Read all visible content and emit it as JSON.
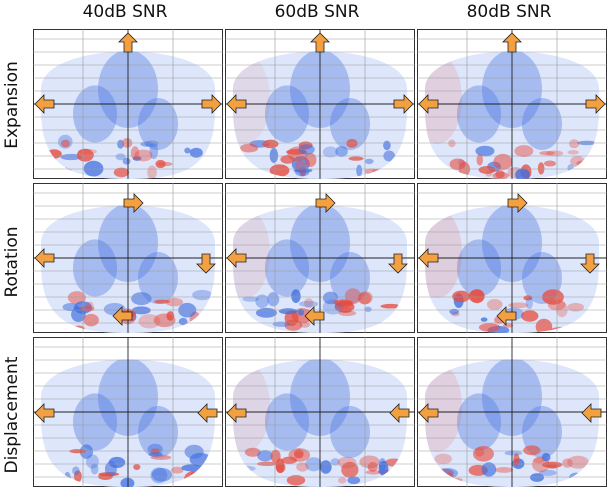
{
  "column_titles": [
    "40dB SNR",
    "60dB SNR",
    "80dB SNR"
  ],
  "row_titles": [
    "Expansion",
    "Rotation",
    "Displacement"
  ],
  "colors": {
    "background_blue": "#dde6fb",
    "negative": "#3f6ee0",
    "positive": "#e84a3c",
    "arrow_fill": "#f2a040",
    "arrow_stroke": "#222222"
  },
  "arrow_glyph": "block-arrow-icon",
  "panels": [
    {
      "row": "Expansion",
      "col": "40dB SNR",
      "arrows": [
        "up",
        "left",
        "right"
      ],
      "red_intensity": 0.25
    },
    {
      "row": "Expansion",
      "col": "60dB SNR",
      "arrows": [
        "up",
        "left",
        "right"
      ],
      "red_intensity": 0.5
    },
    {
      "row": "Expansion",
      "col": "80dB SNR",
      "arrows": [
        "up",
        "left",
        "right"
      ],
      "red_intensity": 0.8
    },
    {
      "row": "Rotation",
      "col": "40dB SNR",
      "arrows": [
        "right",
        "left",
        "down",
        "left"
      ],
      "red_intensity": 0.3
    },
    {
      "row": "Rotation",
      "col": "60dB SNR",
      "arrows": [
        "right",
        "left",
        "down",
        "left"
      ],
      "red_intensity": 0.6
    },
    {
      "row": "Rotation",
      "col": "80dB SNR",
      "arrows": [
        "right",
        "left",
        "down",
        "left"
      ],
      "red_intensity": 0.9
    },
    {
      "row": "Displacement",
      "col": "40dB SNR",
      "arrows": [
        "left",
        "left"
      ],
      "red_intensity": 0.2
    },
    {
      "row": "Displacement",
      "col": "60dB SNR",
      "arrows": [
        "left",
        "left"
      ],
      "red_intensity": 0.6
    },
    {
      "row": "Displacement",
      "col": "80dB SNR",
      "arrows": [
        "left",
        "left"
      ],
      "red_intensity": 0.8
    }
  ]
}
